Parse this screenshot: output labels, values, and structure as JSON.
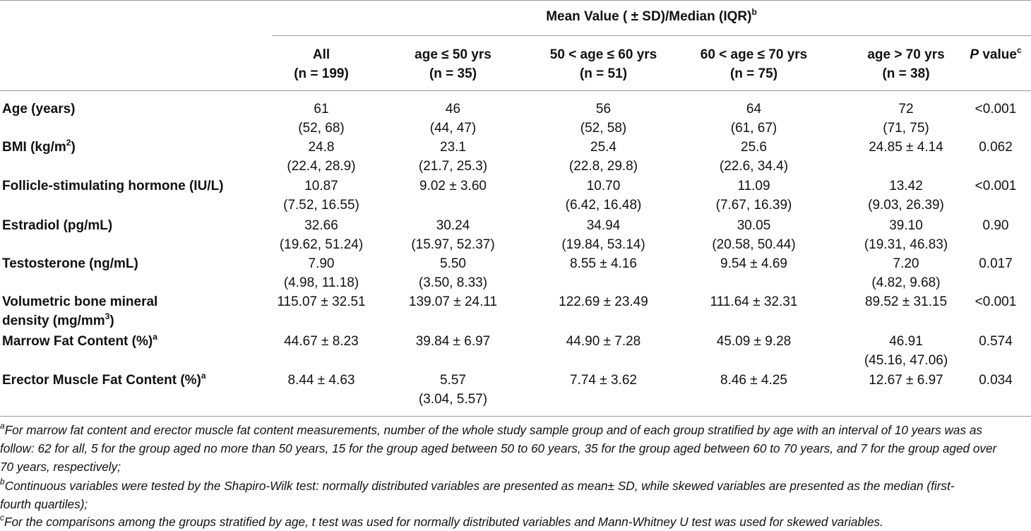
{
  "header": {
    "span_title": "Mean Value ( ± SD)/Median (IQR)",
    "span_title_sup": "b",
    "columns": [
      {
        "line1": "All",
        "line2": "(n = 199)"
      },
      {
        "line1": "age ≤ 50 yrs",
        "line2": "(n = 35)"
      },
      {
        "line1": "50 < age ≤ 60 yrs",
        "line2": "(n = 51)"
      },
      {
        "line1": "60 < age ≤ 70 yrs",
        "line2": "(n = 75)"
      },
      {
        "line1": "age > 70 yrs",
        "line2": "(n = 38)"
      }
    ],
    "pvalue_italic": "P",
    "pvalue_rest": " value",
    "pvalue_sup": "c"
  },
  "rows": [
    {
      "label": "Age (years)",
      "cells": [
        [
          "61",
          "(52, 68)"
        ],
        [
          "46",
          "(44, 47)"
        ],
        [
          "56",
          "(52, 58)"
        ],
        [
          "64",
          "(61, 67)"
        ],
        [
          "72",
          "(71, 75)"
        ]
      ],
      "p": "<0.001"
    },
    {
      "label_pre": "BMI (kg/m",
      "label_sup": "2",
      "label_post": ")",
      "cells": [
        [
          "24.8",
          "(22.4, 28.9)"
        ],
        [
          "23.1",
          "(21.7, 25.3)"
        ],
        [
          "25.4",
          "(22.8, 29.8)"
        ],
        [
          "25.6",
          "(22.6, 34.4)"
        ],
        [
          "24.85 ± 4.14",
          ""
        ]
      ],
      "p": "0.062"
    },
    {
      "label": "Follicle-stimulating hormone (IU/L)",
      "cells": [
        [
          "10.87",
          "(7.52, 16.55)"
        ],
        [
          "9.02 ± 3.60",
          ""
        ],
        [
          "10.70",
          "(6.42, 16.48)"
        ],
        [
          "11.09",
          "(7.67, 16.39)"
        ],
        [
          "13.42",
          "(9.03, 26.39)"
        ]
      ],
      "p": "<0.001"
    },
    {
      "label": "Estradiol (pg/mL)",
      "cells": [
        [
          "32.66",
          "(19.62, 51.24)"
        ],
        [
          "30.24",
          "(15.97, 52.37)"
        ],
        [
          "34.94",
          "(19.84, 53.14)"
        ],
        [
          "30.05",
          "(20.58, 50.44)"
        ],
        [
          "39.10",
          "(19.31, 46.83)"
        ]
      ],
      "p": "0.90"
    },
    {
      "label": "Testosterone (ng/mL)",
      "cells": [
        [
          "7.90",
          "(4.98, 11.18)"
        ],
        [
          "5.50",
          "(3.50, 8.33)"
        ],
        [
          "8.55 ± 4.16",
          ""
        ],
        [
          "9.54 ± 4.69",
          ""
        ],
        [
          "7.20",
          "(4.82, 9.68)"
        ]
      ],
      "p": "0.017"
    },
    {
      "label_line1": "Volumetric bone mineral",
      "label_line2_pre": "density (mg/mm",
      "label_sup": "3",
      "label_line2_post": ")",
      "cells": [
        [
          "115.07 ± 32.51",
          ""
        ],
        [
          "139.07 ± 24.11",
          ""
        ],
        [
          "122.69 ± 23.49",
          ""
        ],
        [
          "111.64 ± 32.31",
          ""
        ],
        [
          "89.52 ± 31.15",
          ""
        ]
      ],
      "p": "<0.001"
    },
    {
      "label": "Marrow Fat Content (%)",
      "label_sup": "a",
      "cells": [
        [
          "44.67 ± 8.23",
          ""
        ],
        [
          "39.84 ± 6.97",
          ""
        ],
        [
          "44.90 ± 7.28",
          ""
        ],
        [
          "45.09 ± 9.28",
          ""
        ],
        [
          "46.91",
          "(45.16, 47.06)"
        ]
      ],
      "p": "0.574"
    },
    {
      "label": "Erector Muscle Fat Content (%)",
      "label_sup": "a",
      "cells": [
        [
          "8.44 ± 4.63",
          ""
        ],
        [
          "5.57",
          "(3.04, 5.57)"
        ],
        [
          "7.74 ± 3.62",
          ""
        ],
        [
          "8.46 ± 4.25",
          ""
        ],
        [
          "12.67 ± 6.97",
          ""
        ]
      ],
      "p": "0.034"
    }
  ],
  "footnotes": [
    {
      "mark": "a",
      "lines": [
        "For marrow fat content and erector muscle fat content measurements, number of the whole study sample group and of each group stratified by age with an interval of 10 years was as",
        "follow: 62 for all, 5 for the group aged no more than 50 years, 15 for the group aged between 50 to 60 years, 35 for the group aged between 60 to 70 years, and 7 for the group aged over",
        "70 years, respectively;"
      ]
    },
    {
      "mark": "b",
      "lines": [
        "Continuous variables were tested by the Shapiro-Wilk test: normally distributed variables are presented as mean± SD, while skewed variables are presented as the median (first-",
        "fourth quartiles);"
      ]
    },
    {
      "mark": "c",
      "lines": [
        "For the comparisons among the groups stratified by age, t test was used for normally distributed variables and Mann-Whitney U test was used for skewed variables."
      ]
    }
  ]
}
